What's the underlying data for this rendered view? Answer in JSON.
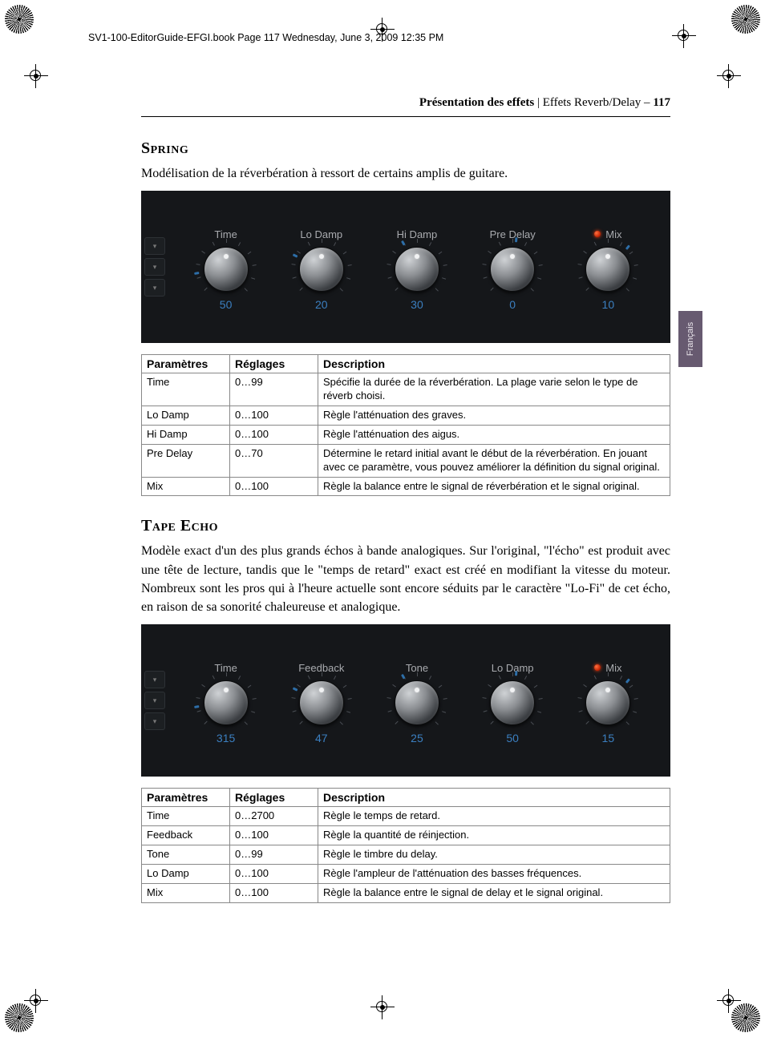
{
  "page_meta": "SV1-100-EditorGuide-EFGI.book  Page 117  Wednesday, June 3, 2009  12:35 PM",
  "running_head": {
    "section_bold": "Présentation des effets",
    "section_rest": " | Effets Reverb/Delay – ",
    "page_number": "117"
  },
  "side_tab": "Français",
  "effects": [
    {
      "title": "Spring",
      "intro": "Modélisation de la réverbération à ressort de certains amplis de guitare.",
      "panel": {
        "background_color": "#15171a",
        "value_color": "#3b7fc0",
        "label_color": "#a9abaf",
        "knobs": [
          {
            "label": "Time",
            "value": "50",
            "has_led": false
          },
          {
            "label": "Lo Damp",
            "value": "20",
            "has_led": false
          },
          {
            "label": "Hi Damp",
            "value": "30",
            "has_led": false
          },
          {
            "label": "Pre Delay",
            "value": "0",
            "has_led": false
          },
          {
            "label": "Mix",
            "value": "10",
            "has_led": true
          }
        ]
      },
      "table": {
        "headers": {
          "param": "Paramètres",
          "range": "Réglages",
          "desc": "Description"
        },
        "rows": [
          {
            "param": "Time",
            "range": "0…99",
            "desc": "Spécifie la durée de la réverbération. La plage varie selon le type de réverb choisi."
          },
          {
            "param": "Lo Damp",
            "range": "0…100",
            "desc": "Règle l'atténuation des graves."
          },
          {
            "param": "Hi Damp",
            "range": "0…100",
            "desc": "Règle l'atténuation des aigus."
          },
          {
            "param": "Pre Delay",
            "range": "0…70",
            "desc": "Détermine le retard initial avant le début de la réverbération. En jouant avec ce paramètre, vous pouvez améliorer la définition du signal original."
          },
          {
            "param": "Mix",
            "range": "0…100",
            "desc": "Règle la balance entre le signal de réverbération et le signal original."
          }
        ]
      }
    },
    {
      "title": "Tape Echo",
      "intro": "Modèle exact d'un des plus grands échos à bande analogiques. Sur l'original, \"l'écho\" est produit avec une tête de lecture, tandis que le \"temps de retard\" exact est créé en modifiant la vitesse du moteur. Nombreux sont les pros qui à l'heure actuelle sont encore séduits par le caractère \"Lo-Fi\" de cet écho, en raison de sa sonorité chaleureuse et analogique.",
      "panel": {
        "background_color": "#15171a",
        "value_color": "#3b7fc0",
        "label_color": "#a9abaf",
        "knobs": [
          {
            "label": "Time",
            "value": "315",
            "has_led": false
          },
          {
            "label": "Feedback",
            "value": "47",
            "has_led": false
          },
          {
            "label": "Tone",
            "value": "25",
            "has_led": false
          },
          {
            "label": "Lo Damp",
            "value": "50",
            "has_led": false
          },
          {
            "label": "Mix",
            "value": "15",
            "has_led": true
          }
        ]
      },
      "table": {
        "headers": {
          "param": "Paramètres",
          "range": "Réglages",
          "desc": "Description"
        },
        "rows": [
          {
            "param": "Time",
            "range": "0…2700",
            "desc": "Règle le temps de retard."
          },
          {
            "param": "Feedback",
            "range": "0…100",
            "desc": "Règle la quantité de réinjection."
          },
          {
            "param": "Tone",
            "range": "0…99",
            "desc": "Règle le timbre du delay."
          },
          {
            "param": "Lo Damp",
            "range": "0…100",
            "desc": "Règle l'ampleur de l'atténuation des basses fréquences."
          },
          {
            "param": "Mix",
            "range": "0…100",
            "desc": "Règle la balance entre le signal de delay et le signal original."
          }
        ]
      }
    }
  ]
}
